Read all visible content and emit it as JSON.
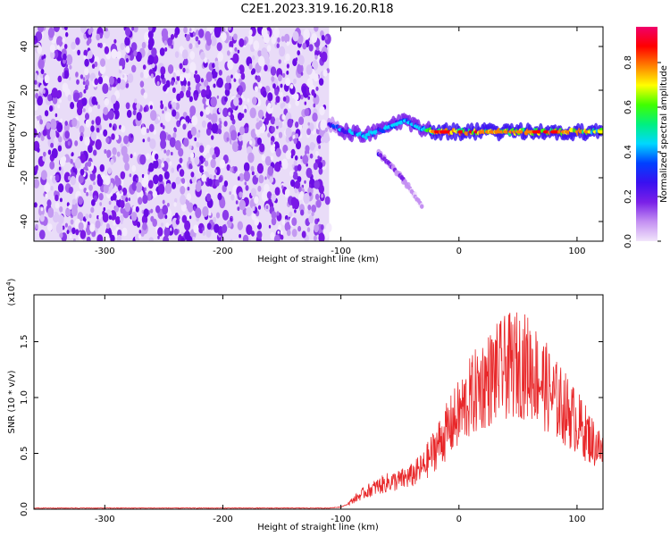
{
  "title": "C2E1.2023.319.16.20.R18",
  "chart_data": [
    {
      "type": "heatmap",
      "xlabel": "Height of straight line (km)",
      "ylabel": "Frequency (Hz)",
      "xlim": [
        -360,
        122
      ],
      "ylim": [
        -49,
        49
      ],
      "xticks": [
        -300,
        -200,
        -100,
        0,
        100
      ],
      "yticks": [
        -40,
        -20,
        0,
        20,
        40
      ],
      "colorbar": {
        "label": "Normalized spectral amplitude",
        "range": [
          0.0,
          0.96
        ],
        "ticks": [
          0.0,
          0.2,
          0.4,
          0.6,
          0.8
        ],
        "colors": [
          "#f2e6fb",
          "#c490f2",
          "#7a20e8",
          "#3a10f0",
          "#0040ff",
          "#00d8ff",
          "#00f080",
          "#40ff00",
          "#ffff00",
          "#ff8000",
          "#ff0000",
          "#f0006a"
        ]
      },
      "noise_region": {
        "x_range": [
          -360,
          -110
        ],
        "y_range": [
          -49,
          49
        ],
        "typical_amplitude": 0.12
      },
      "signal_trace": [
        {
          "x": -110,
          "y": 5,
          "amplitude": 0.25
        },
        {
          "x": -100,
          "y": 2,
          "amplitude": 0.4
        },
        {
          "x": -80,
          "y": -1,
          "amplitude": 0.45
        },
        {
          "x": -60,
          "y": 3,
          "amplitude": 0.45
        },
        {
          "x": -45,
          "y": 6,
          "amplitude": 0.45
        },
        {
          "x": -30,
          "y": 2,
          "amplitude": 0.45
        },
        {
          "x": -20,
          "y": 1,
          "amplitude": 0.85
        },
        {
          "x": 0,
          "y": 1,
          "amplitude": 0.85
        },
        {
          "x": 40,
          "y": 1,
          "amplitude": 0.8
        },
        {
          "x": 80,
          "y": 1,
          "amplitude": 0.85
        },
        {
          "x": 122,
          "y": 1,
          "amplitude": 0.7
        }
      ],
      "secondary_trace": [
        {
          "x": -68,
          "y": -9,
          "amplitude": 0.3
        },
        {
          "x": -60,
          "y": -13,
          "amplitude": 0.2
        },
        {
          "x": -50,
          "y": -19,
          "amplitude": 0.15
        },
        {
          "x": -40,
          "y": -26,
          "amplitude": 0.12
        },
        {
          "x": -30,
          "y": -34,
          "amplitude": 0.08
        }
      ]
    },
    {
      "type": "line",
      "xlabel": "Height of straight line (km)",
      "ylabel": "SNR (10 * v/v)",
      "multiplier": "(x10^4)",
      "xlim": [
        -360,
        122
      ],
      "ylim": [
        0.0,
        1.92
      ],
      "xticks": [
        -300,
        -200,
        -100,
        0,
        100
      ],
      "yticks": [
        0.0,
        0.5,
        1.0,
        1.5
      ],
      "color": "#e8282a",
      "x": [
        -360,
        -300,
        -200,
        -110,
        -100,
        -95,
        -90,
        -80,
        -70,
        -60,
        -50,
        -40,
        -30,
        -20,
        -10,
        0,
        10,
        20,
        30,
        40,
        50,
        60,
        70,
        80,
        90,
        100,
        110,
        122
      ],
      "values": [
        0.01,
        0.01,
        0.01,
        0.01,
        0.02,
        0.04,
        0.08,
        0.15,
        0.2,
        0.24,
        0.26,
        0.3,
        0.38,
        0.55,
        0.7,
        0.85,
        1.0,
        1.12,
        1.2,
        1.27,
        1.3,
        1.27,
        1.15,
        1.0,
        0.9,
        0.78,
        0.65,
        0.5
      ]
    }
  ]
}
